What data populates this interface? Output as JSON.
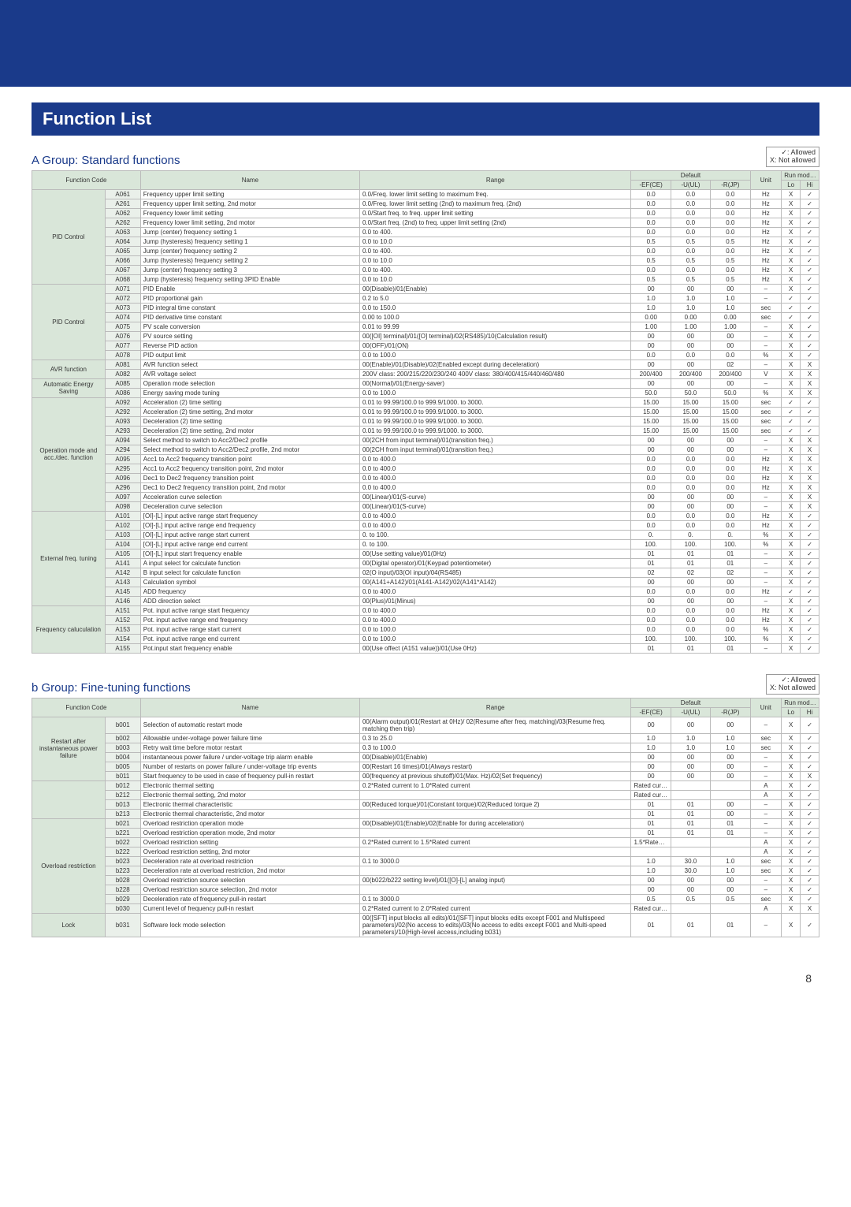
{
  "page_title": "Function List",
  "page_number": "8",
  "legend": {
    "allowed": "✓: Allowed",
    "not": "X: Not allowed"
  },
  "colors": {
    "brand": "#1a3a8a",
    "th_bg": "#d9e6d9",
    "code_bg": "#eaf0ea",
    "border": "#bbbbbb"
  },
  "groupA": {
    "title": "A Group: Standard functions",
    "columns": [
      "Function Code",
      "",
      "Name",
      "Range",
      "-EF(CE)",
      "-U(UL)",
      "-R(JP)",
      "Unit",
      "Lo",
      "Hi"
    ],
    "header2": [
      "Default",
      "",
      "",
      "Run mode edit",
      ""
    ],
    "categories": [
      {
        "name": "PID Control",
        "rows": [
          [
            "A061",
            "Frequency upper limit setting",
            "0.0/Freq. lower limit setting to maximum freq.",
            "0.0",
            "0.0",
            "0.0",
            "Hz",
            "X",
            "✓"
          ],
          [
            "A261",
            "Frequency upper limit setting, 2nd motor",
            "0.0/Freq. lower limit setting (2nd) to maximum freq. (2nd)",
            "0.0",
            "0.0",
            "0.0",
            "Hz",
            "X",
            "✓"
          ],
          [
            "A062",
            "Frequency lower limit setting",
            "0.0/Start freq. to freq. upper limit setting",
            "0.0",
            "0.0",
            "0.0",
            "Hz",
            "X",
            "✓"
          ],
          [
            "A262",
            "Frequency lower limit setting, 2nd motor",
            "0.0/Start freq. (2nd) to freq. upper limit setting (2nd)",
            "0.0",
            "0.0",
            "0.0",
            "Hz",
            "X",
            "✓"
          ],
          [
            "A063",
            "Jump (center) frequency setting 1",
            "0.0 to 400.",
            "0.0",
            "0.0",
            "0.0",
            "Hz",
            "X",
            "✓"
          ],
          [
            "A064",
            "Jump (hysteresis) frequency setting 1",
            "0.0 to 10.0",
            "0.5",
            "0.5",
            "0.5",
            "Hz",
            "X",
            "✓"
          ],
          [
            "A065",
            "Jump (center) frequency setting 2",
            "0.0 to 400.",
            "0.0",
            "0.0",
            "0.0",
            "Hz",
            "X",
            "✓"
          ],
          [
            "A066",
            "Jump (hysteresis) frequency setting 2",
            "0.0 to 10.0",
            "0.5",
            "0.5",
            "0.5",
            "Hz",
            "X",
            "✓"
          ],
          [
            "A067",
            "Jump (center) frequency setting 3",
            "0.0 to 400.",
            "0.0",
            "0.0",
            "0.0",
            "Hz",
            "X",
            "✓"
          ],
          [
            "A068",
            "Jump (hysteresis) frequency setting 3PID Enable",
            "0.0 to 10.0",
            "0.5",
            "0.5",
            "0.5",
            "Hz",
            "X",
            "✓"
          ]
        ]
      },
      {
        "name": "PID Control",
        "rows": [
          [
            "A071",
            "PID Enable",
            "00(Disable)/01(Enable)",
            "00",
            "00",
            "00",
            "–",
            "X",
            "✓"
          ],
          [
            "A072",
            "PID proportional gain",
            "0.2 to 5.0",
            "1.0",
            "1.0",
            "1.0",
            "–",
            "✓",
            "✓"
          ],
          [
            "A073",
            "PID integral time constant",
            "0.0 to 150.0",
            "1.0",
            "1.0",
            "1.0",
            "sec",
            "✓",
            "✓"
          ],
          [
            "A074",
            "PID derivative time constant",
            "0.00 to 100.0",
            "0.00",
            "0.00",
            "0.00",
            "sec",
            "✓",
            "✓"
          ],
          [
            "A075",
            "PV scale conversion",
            "0.01 to 99.99",
            "1.00",
            "1.00",
            "1.00",
            "–",
            "X",
            "✓"
          ],
          [
            "A076",
            "PV source setting",
            "00([OI] terminal)/01([O] terminal)/02(RS485)/10(Calculation result)",
            "00",
            "00",
            "00",
            "–",
            "X",
            "✓"
          ],
          [
            "A077",
            "Reverse PID action",
            "00(OFF)/01(ON)",
            "00",
            "00",
            "00",
            "–",
            "X",
            "✓"
          ],
          [
            "A078",
            "PID output limit",
            "0.0 to 100.0",
            "0.0",
            "0.0",
            "0.0",
            "%",
            "X",
            "✓"
          ]
        ]
      },
      {
        "name": "AVR function",
        "rows": [
          [
            "A081",
            "AVR function select",
            "00(Enable)/01(Disable)/02(Enabled except during deceleration)",
            "00",
            "00",
            "02",
            "–",
            "X",
            "X"
          ],
          [
            "A082",
            "AVR voltage select",
            "200V class: 200/215/220/230/240    400V class: 380/400/415/440/460/480",
            "200/400",
            "200/400",
            "200/400",
            "V",
            "X",
            "X"
          ]
        ]
      },
      {
        "name": "Automatic Energy Saving",
        "rows": [
          [
            "A085",
            "Operation mode selection",
            "00(Normal)/01(Energy-saver)",
            "00",
            "00",
            "00",
            "–",
            "X",
            "X"
          ],
          [
            "A086",
            "Energy saving mode tuning",
            "0.0 to 100.0",
            "50.0",
            "50.0",
            "50.0",
            "%",
            "X",
            "X"
          ]
        ]
      },
      {
        "name": "Operation mode and acc./dec. function",
        "rows": [
          [
            "A092",
            "Acceleration (2) time setting",
            "0.01 to 99.99/100.0 to 999.9/1000. to 3000.",
            "15.00",
            "15.00",
            "15.00",
            "sec",
            "✓",
            "✓"
          ],
          [
            "A292",
            "Acceleration (2) time setting, 2nd motor",
            "0.01 to 99.99/100.0 to 999.9/1000. to 3000.",
            "15.00",
            "15.00",
            "15.00",
            "sec",
            "✓",
            "✓"
          ],
          [
            "A093",
            "Deceleration (2) time setting",
            "0.01 to 99.99/100.0 to 999.9/1000. to 3000.",
            "15.00",
            "15.00",
            "15.00",
            "sec",
            "✓",
            "✓"
          ],
          [
            "A293",
            "Deceleration (2) time setting, 2nd motor",
            "0.01 to 99.99/100.0 to 999.9/1000. to 3000.",
            "15.00",
            "15.00",
            "15.00",
            "sec",
            "✓",
            "✓"
          ],
          [
            "A094",
            "Select method to switch to Acc2/Dec2 profile",
            "00(2CH from input terminal)/01(transition freq.)",
            "00",
            "00",
            "00",
            "–",
            "X",
            "X"
          ],
          [
            "A294",
            "Select method to switch to Acc2/Dec2 profile, 2nd motor",
            "00(2CH from input terminal)/01(transition freq.)",
            "00",
            "00",
            "00",
            "–",
            "X",
            "X"
          ],
          [
            "A095",
            "Acc1 to Acc2 frequency transition point",
            "0.0 to 400.0",
            "0.0",
            "0.0",
            "0.0",
            "Hz",
            "X",
            "X"
          ],
          [
            "A295",
            "Acc1 to Acc2 frequency transition point, 2nd motor",
            "0.0 to 400.0",
            "0.0",
            "0.0",
            "0.0",
            "Hz",
            "X",
            "X"
          ],
          [
            "A096",
            "Dec1 to Dec2 frequency transition point",
            "0.0 to 400.0",
            "0.0",
            "0.0",
            "0.0",
            "Hz",
            "X",
            "X"
          ],
          [
            "A296",
            "Dec1 to Dec2 frequency transition point, 2nd motor",
            "0.0 to 400.0",
            "0.0",
            "0.0",
            "0.0",
            "Hz",
            "X",
            "X"
          ],
          [
            "A097",
            "Acceleration curve selection",
            "00(Linear)/01(S-curve)",
            "00",
            "00",
            "00",
            "–",
            "X",
            "X"
          ],
          [
            "A098",
            "Deceleration curve selection",
            "00(Linear)/01(S-curve)",
            "00",
            "00",
            "00",
            "–",
            "X",
            "X"
          ]
        ]
      },
      {
        "name": "External freq. tuning",
        "rows": [
          [
            "A101",
            "[OI]-[L] input active range start frequency",
            "0.0 to 400.0",
            "0.0",
            "0.0",
            "0.0",
            "Hz",
            "X",
            "✓"
          ],
          [
            "A102",
            "[OI]-[L] input active range end frequency",
            "0.0 to 400.0",
            "0.0",
            "0.0",
            "0.0",
            "Hz",
            "X",
            "✓"
          ],
          [
            "A103",
            "[OI]-[L] input active range start current",
            "0. to 100.",
            "0.",
            "0.",
            "0.",
            "%",
            "X",
            "✓"
          ],
          [
            "A104",
            "[OI]-[L] input active range end current",
            "0. to 100.",
            "100.",
            "100.",
            "100.",
            "%",
            "X",
            "✓"
          ],
          [
            "A105",
            "[OI]-[L] input start frequency enable",
            "00(Use setting value)/01(0Hz)",
            "01",
            "01",
            "01",
            "–",
            "X",
            "✓"
          ],
          [
            "A141",
            "A input select for calculate function",
            "00(Digital operator)/01(Keypad potentiometer)",
            "01",
            "01",
            "01",
            "–",
            "X",
            "✓"
          ],
          [
            "A142",
            "B input select for calculate function",
            "02(O input)/03(OI input)/04(RS485)",
            "02",
            "02",
            "02",
            "–",
            "X",
            "✓"
          ],
          [
            "A143",
            "Calculation symbol",
            "00(A141+A142)/01(A141-A142)/02(A141*A142)",
            "00",
            "00",
            "00",
            "–",
            "X",
            "✓"
          ],
          [
            "A145",
            "ADD frequency",
            "0.0 to 400.0",
            "0.0",
            "0.0",
            "0.0",
            "Hz",
            "✓",
            "✓"
          ],
          [
            "A146",
            "ADD direction select",
            "00(Plus)/01(Minus)",
            "00",
            "00",
            "00",
            "–",
            "X",
            "✓"
          ]
        ]
      },
      {
        "name": "Frequency caluculation",
        "rows": [
          [
            "A151",
            "Pot. input active range start frequency",
            "0.0 to 400.0",
            "0.0",
            "0.0",
            "0.0",
            "Hz",
            "X",
            "✓"
          ],
          [
            "A152",
            "Pot. input active range end frequency",
            "0.0 to 400.0",
            "0.0",
            "0.0",
            "0.0",
            "Hz",
            "X",
            "✓"
          ],
          [
            "A153",
            "Pot. input active range start current",
            "0.0 to 100.0",
            "0.0",
            "0.0",
            "0.0",
            "%",
            "X",
            "✓"
          ],
          [
            "A154",
            "Pot. input active range end current",
            "0.0 to 100.0",
            "100.",
            "100.",
            "100.",
            "%",
            "X",
            "✓"
          ],
          [
            "A155",
            "Pot.input start frequency enable",
            "00(Use offect (A151 value))/01(Use 0Hz)",
            "01",
            "01",
            "01",
            "–",
            "X",
            "✓"
          ]
        ]
      }
    ]
  },
  "groupB": {
    "title": "b Group: Fine-tuning functions",
    "columns": [
      "Function Code",
      "",
      "Name",
      "Range",
      "-EF(CE)",
      "-U(UL)",
      "-R(JP)",
      "Unit",
      "Lo",
      "Hi"
    ],
    "categories": [
      {
        "name": "Restart after instantaneous power failure",
        "rows": [
          [
            "b001",
            "Selection of automatic restart mode",
            "00(Alarm output)/01(Restart at 0Hz)/ 02(Resume after freq. matching)/03(Resume freq. matching then trip)",
            "00",
            "00",
            "00",
            "–",
            "X",
            "✓"
          ],
          [
            "b002",
            "Allowable under-voltage power failure time",
            "0.3 to 25.0",
            "1.0",
            "1.0",
            "1.0",
            "sec",
            "X",
            "✓"
          ],
          [
            "b003",
            "Retry wait time before motor restart",
            "0.3 to 100.0",
            "1.0",
            "1.0",
            "1.0",
            "sec",
            "X",
            "✓"
          ],
          [
            "b004",
            "instantaneous power failure / under-voltage trip alarm enable",
            "00(Disable)/01(Enable)",
            "00",
            "00",
            "00",
            "–",
            "X",
            "✓"
          ],
          [
            "b005",
            "Number of restarts on power failure / under-voltage trip events",
            "00(Restart 16 times)/01(Always restart)",
            "00",
            "00",
            "00",
            "–",
            "X",
            "✓"
          ],
          [
            "b011",
            "Start frequency to be used in case of frequency pull-in restart",
            "00(frequency at previous shutoff)/01(Max. Hz)/02(Set frequency)",
            "00",
            "00",
            "00",
            "–",
            "X",
            "X"
          ]
        ]
      },
      {
        "name": "",
        "rows": [
          [
            "b012",
            "Electronic thermal setting",
            "0.2*Rated current to 1.0*Rated current",
            "Rated current",
            "",
            "",
            "A",
            "X",
            "✓"
          ],
          [
            "b212",
            "Electronic thermal setting, 2nd motor",
            "",
            "Rated current",
            "",
            "",
            "A",
            "X",
            "✓"
          ],
          [
            "b013",
            "Electronic thermal characteristic",
            "00(Reduced torque)/01(Constant torque)/02(Reduced torque 2)",
            "01",
            "01",
            "00",
            "–",
            "X",
            "✓"
          ],
          [
            "b213",
            "Electronic thermal characteristic, 2nd motor",
            "",
            "01",
            "01",
            "00",
            "–",
            "X",
            "✓"
          ]
        ]
      },
      {
        "name": "Overload restriction",
        "rows": [
          [
            "b021",
            "Overload restriction operation mode",
            "00(Disable)/01(Enable)/02(Enable for during acceleration)",
            "01",
            "01",
            "01",
            "–",
            "X",
            "✓"
          ],
          [
            "b221",
            "Overload restriction operation mode, 2nd motor",
            "",
            "01",
            "01",
            "01",
            "–",
            "X",
            "✓"
          ],
          [
            "b022",
            "Overload restriction setting",
            "0.2*Rated current to 1.5*Rated current",
            "1.5*Rated current",
            "",
            "",
            "A",
            "X",
            "✓"
          ],
          [
            "b222",
            "Overload restriction setting, 2nd motor",
            "",
            "",
            "",
            "",
            "A",
            "X",
            "✓"
          ],
          [
            "b023",
            "Deceleration rate at overload restriction",
            "0.1 to 3000.0",
            "1.0",
            "30.0",
            "1.0",
            "sec",
            "X",
            "✓"
          ],
          [
            "b223",
            "Deceleration rate at overload restriction, 2nd motor",
            "",
            "1.0",
            "30.0",
            "1.0",
            "sec",
            "X",
            "✓"
          ],
          [
            "b028",
            "Overload restriction source selection",
            "00(b022/b222 setting level)/01([O]-[L] analog input)",
            "00",
            "00",
            "00",
            "–",
            "X",
            "✓"
          ],
          [
            "b228",
            "Overload restriction source selection, 2nd motor",
            "",
            "00",
            "00",
            "00",
            "–",
            "X",
            "✓"
          ],
          [
            "b029",
            "Deceleration rate of frequency pull-in restart",
            "0.1 to 3000.0",
            "0.5",
            "0.5",
            "0.5",
            "sec",
            "X",
            "✓"
          ],
          [
            "b030",
            "Current level of frequency pull-in restart",
            "0.2*Rated current to 2.0*Rated current",
            "Rated current",
            "",
            "",
            "A",
            "X",
            "X"
          ]
        ]
      },
      {
        "name": "Lock",
        "rows": [
          [
            "b031",
            "Software lock mode selection",
            "00([SFT] input blocks all edits)/01([SFT] input blocks edits except F001 and Multispeed parameters)/02(No access to edits)/03(No access to edits except F001 and Multi-speed parameters)/10(High-level access,including b031)",
            "01",
            "01",
            "01",
            "–",
            "X",
            "✓"
          ]
        ]
      }
    ]
  }
}
